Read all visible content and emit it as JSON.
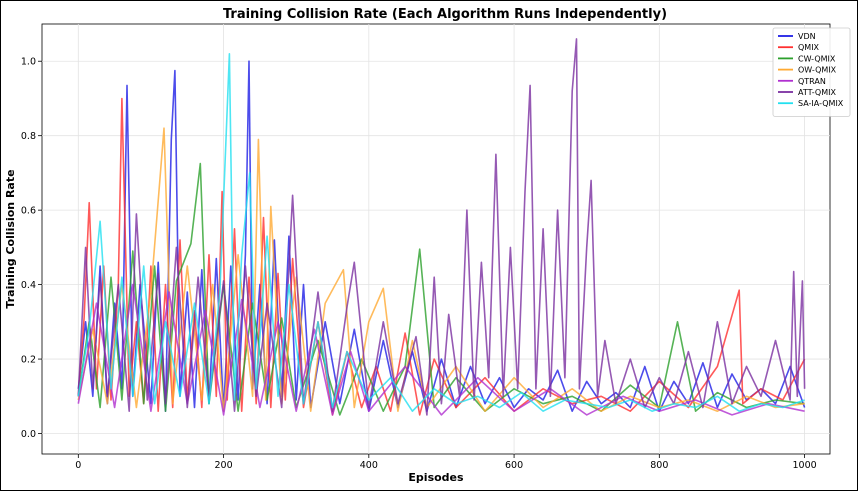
{
  "chart_data": {
    "type": "line",
    "title": "Training Collision Rate (Each Algorithm Runs Independently)",
    "xlabel": "Episodes",
    "ylabel": "Training Collision Rate",
    "xlim": [
      -50,
      1035
    ],
    "ylim": [
      -0.055,
      1.1
    ],
    "xticks": [
      0,
      200,
      400,
      600,
      800,
      1000
    ],
    "yticks": [
      0.0,
      0.2,
      0.4,
      0.6,
      0.8,
      1.0
    ],
    "xtick_labels": [
      "0",
      "200",
      "400",
      "600",
      "800",
      "1000"
    ],
    "ytick_labels": [
      "0.0",
      "0.2",
      "0.4",
      "0.6",
      "0.8",
      "1.0"
    ],
    "grid": true,
    "legend_position": "top-right",
    "series": [
      {
        "name": "VDN",
        "color": "#1f1fe6",
        "x": [
          0,
          10,
          20,
          30,
          40,
          50,
          60,
          67,
          75,
          85,
          100,
          110,
          120,
          128,
          133,
          140,
          150,
          160,
          170,
          180,
          190,
          200,
          210,
          220,
          230,
          235,
          240,
          250,
          260,
          270,
          280,
          290,
          300,
          310,
          320,
          340,
          360,
          380,
          400,
          420,
          440,
          460,
          480,
          500,
          520,
          540,
          560,
          580,
          600,
          620,
          640,
          660,
          680,
          700,
          720,
          740,
          760,
          780,
          800,
          820,
          840,
          860,
          880,
          900,
          920,
          940,
          960,
          980,
          1000
        ],
        "y": [
          0.12,
          0.3,
          0.1,
          0.45,
          0.08,
          0.35,
          0.12,
          0.935,
          0.1,
          0.4,
          0.08,
          0.46,
          0.06,
          0.79,
          0.975,
          0.1,
          0.38,
          0.07,
          0.44,
          0.08,
          0.47,
          0.06,
          0.45,
          0.09,
          0.48,
          1.0,
          0.12,
          0.4,
          0.08,
          0.52,
          0.1,
          0.53,
          0.09,
          0.4,
          0.07,
          0.3,
          0.08,
          0.28,
          0.06,
          0.25,
          0.07,
          0.22,
          0.06,
          0.2,
          0.07,
          0.18,
          0.08,
          0.15,
          0.07,
          0.12,
          0.09,
          0.17,
          0.06,
          0.14,
          0.08,
          0.11,
          0.07,
          0.18,
          0.06,
          0.14,
          0.08,
          0.19,
          0.07,
          0.16,
          0.09,
          0.12,
          0.08,
          0.18,
          0.07
        ]
      },
      {
        "name": "QMIX",
        "color": "#ff3030",
        "x": [
          0,
          8,
          15,
          25,
          35,
          45,
          55,
          60,
          70,
          80,
          90,
          100,
          110,
          120,
          130,
          140,
          150,
          160,
          170,
          180,
          190,
          198,
          205,
          215,
          225,
          235,
          245,
          255,
          265,
          275,
          285,
          295,
          310,
          330,
          350,
          370,
          390,
          410,
          430,
          450,
          470,
          490,
          520,
          560,
          600,
          640,
          680,
          720,
          760,
          800,
          840,
          880,
          910,
          915,
          940,
          970,
          1000
        ],
        "y": [
          0.1,
          0.31,
          0.62,
          0.12,
          0.45,
          0.09,
          0.4,
          0.9,
          0.1,
          0.3,
          0.08,
          0.45,
          0.06,
          0.4,
          0.07,
          0.52,
          0.09,
          0.33,
          0.07,
          0.48,
          0.1,
          0.65,
          0.09,
          0.55,
          0.06,
          0.42,
          0.08,
          0.58,
          0.07,
          0.43,
          0.09,
          0.47,
          0.07,
          0.3,
          0.05,
          0.22,
          0.07,
          0.18,
          0.06,
          0.27,
          0.05,
          0.2,
          0.07,
          0.15,
          0.06,
          0.12,
          0.08,
          0.1,
          0.06,
          0.14,
          0.07,
          0.18,
          0.385,
          0.08,
          0.12,
          0.09,
          0.2
        ]
      },
      {
        "name": "CW-QMIX",
        "color": "#2ca02c",
        "x": [
          0,
          15,
          30,
          45,
          60,
          75,
          90,
          105,
          120,
          135,
          155,
          168,
          180,
          200,
          220,
          240,
          260,
          280,
          300,
          330,
          360,
          390,
          420,
          450,
          470,
          490,
          520,
          560,
          600,
          640,
          680,
          720,
          760,
          800,
          825,
          850,
          880,
          920,
          960,
          1000
        ],
        "y": [
          0.1,
          0.3,
          0.07,
          0.42,
          0.09,
          0.49,
          0.08,
          0.45,
          0.06,
          0.41,
          0.51,
          0.725,
          0.08,
          0.4,
          0.06,
          0.35,
          0.09,
          0.31,
          0.07,
          0.25,
          0.05,
          0.2,
          0.06,
          0.18,
          0.495,
          0.07,
          0.15,
          0.06,
          0.12,
          0.08,
          0.1,
          0.06,
          0.13,
          0.07,
          0.3,
          0.06,
          0.11,
          0.07,
          0.09,
          0.08
        ]
      },
      {
        "name": "OW-QMIX",
        "color": "#ffaa33",
        "x": [
          0,
          20,
          40,
          60,
          80,
          100,
          118,
          130,
          150,
          170,
          185,
          200,
          220,
          240,
          248,
          258,
          265,
          280,
          300,
          320,
          340,
          365,
          380,
          400,
          420,
          440,
          460,
          480,
          520,
          560,
          600,
          640,
          680,
          720,
          760,
          800,
          840,
          880,
          920,
          960,
          1000
        ],
        "y": [
          0.09,
          0.28,
          0.08,
          0.4,
          0.07,
          0.38,
          0.82,
          0.08,
          0.45,
          0.09,
          0.4,
          0.06,
          0.48,
          0.1,
          0.79,
          0.09,
          0.61,
          0.08,
          0.42,
          0.06,
          0.35,
          0.44,
          0.07,
          0.3,
          0.39,
          0.06,
          0.25,
          0.07,
          0.18,
          0.06,
          0.15,
          0.07,
          0.12,
          0.06,
          0.1,
          0.07,
          0.09,
          0.06,
          0.1,
          0.07,
          0.08
        ]
      },
      {
        "name": "QTRAN",
        "color": "#b030d0",
        "x": [
          0,
          25,
          50,
          75,
          100,
          125,
          150,
          175,
          200,
          225,
          250,
          275,
          300,
          325,
          350,
          375,
          400,
          450,
          500,
          550,
          600,
          650,
          700,
          750,
          800,
          850,
          900,
          950,
          1000
        ],
        "y": [
          0.08,
          0.35,
          0.07,
          0.4,
          0.06,
          0.38,
          0.08,
          0.33,
          0.05,
          0.36,
          0.07,
          0.3,
          0.06,
          0.28,
          0.05,
          0.22,
          0.06,
          0.18,
          0.05,
          0.15,
          0.06,
          0.12,
          0.05,
          0.1,
          0.06,
          0.09,
          0.05,
          0.08,
          0.06
        ]
      },
      {
        "name": "ATT-QMIX",
        "color": "#7b2fa0",
        "x": [
          0,
          10,
          20,
          30,
          40,
          55,
          70,
          80,
          95,
          110,
          120,
          135,
          150,
          165,
          180,
          200,
          215,
          230,
          245,
          260,
          280,
          295,
          310,
          330,
          350,
          370,
          380,
          400,
          420,
          440,
          465,
          480,
          490,
          500,
          510,
          525,
          535,
          545,
          555,
          565,
          575,
          585,
          595,
          605,
          615,
          622,
          630,
          640,
          650,
          660,
          670,
          680,
          686,
          690,
          700,
          706,
          715,
          725,
          740,
          760,
          780,
          800,
          820,
          840,
          860,
          880,
          900,
          920,
          940,
          960,
          980,
          985,
          990,
          997,
          1000
        ],
        "y": [
          0.1,
          0.5,
          0.12,
          0.42,
          0.1,
          0.4,
          0.06,
          0.59,
          0.09,
          0.43,
          0.08,
          0.5,
          0.07,
          0.42,
          0.09,
          0.41,
          0.06,
          0.45,
          0.1,
          0.35,
          0.07,
          0.64,
          0.08,
          0.38,
          0.06,
          0.34,
          0.46,
          0.07,
          0.3,
          0.08,
          0.26,
          0.05,
          0.42,
          0.08,
          0.32,
          0.1,
          0.6,
          0.09,
          0.46,
          0.15,
          0.75,
          0.1,
          0.5,
          0.12,
          0.65,
          0.935,
          0.12,
          0.55,
          0.1,
          0.6,
          0.15,
          0.92,
          1.06,
          0.12,
          0.5,
          0.68,
          0.1,
          0.25,
          0.08,
          0.2,
          0.07,
          0.15,
          0.08,
          0.22,
          0.07,
          0.3,
          0.08,
          0.18,
          0.1,
          0.25,
          0.09,
          0.435,
          0.1,
          0.41,
          0.12
        ]
      },
      {
        "name": "SA-IA-QMIX",
        "color": "#22e0f0",
        "x": [
          0,
          15,
          30,
          45,
          60,
          75,
          90,
          105,
          120,
          140,
          160,
          180,
          195,
          208,
          215,
          225,
          236,
          245,
          260,
          275,
          290,
          310,
          330,
          350,
          370,
          400,
          430,
          460,
          490,
          520,
          550,
          580,
          610,
          640,
          670,
          700,
          730,
          760,
          790,
          820,
          850,
          880,
          910,
          940,
          970,
          1000
        ],
        "y": [
          0.1,
          0.28,
          0.57,
          0.12,
          0.42,
          0.1,
          0.45,
          0.08,
          0.3,
          0.1,
          0.35,
          0.08,
          0.38,
          1.02,
          0.09,
          0.48,
          0.7,
          0.12,
          0.53,
          0.1,
          0.4,
          0.08,
          0.3,
          0.07,
          0.22,
          0.09,
          0.15,
          0.06,
          0.12,
          0.08,
          0.1,
          0.07,
          0.11,
          0.06,
          0.09,
          0.08,
          0.07,
          0.09,
          0.06,
          0.08,
          0.07,
          0.1,
          0.06,
          0.08,
          0.07,
          0.09
        ]
      }
    ]
  }
}
